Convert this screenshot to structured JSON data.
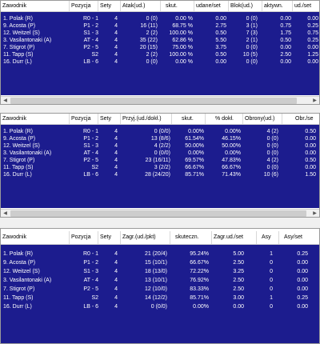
{
  "players": [
    "1. Polak (R)",
    "9. Acosta (P)",
    "12. Weitzel (S)",
    "3. Vasilantonaki (A)",
    "7. Stigrot (P)",
    "11. Tapp (S)",
    "16. Durr (L)"
  ],
  "positions": [
    "R0 - 1",
    "P1 - 2",
    "S1 - 3",
    "AT - 4",
    "P2 - 5",
    "S2",
    "LB - 6"
  ],
  "sets": [
    "4",
    "4",
    "4",
    "4",
    "4",
    "4",
    "4"
  ],
  "table1": {
    "headers": [
      "Zawodnik",
      "Pozycja",
      "Sety",
      "Atak(ud.)",
      "skut.",
      "udane/set",
      "Blok(ud.)",
      "aktywn.",
      "ud./set"
    ],
    "rows": [
      [
        "0 (0)",
        "0.00 %",
        "0.00",
        "0 (0)",
        "0.00",
        "0.00"
      ],
      [
        "16 (11)",
        "68.75 %",
        "2.75",
        "3 (1)",
        "0.75",
        "0.25"
      ],
      [
        "2 (2)",
        "100.00 %",
        "0.50",
        "7 (3)",
        "1.75",
        "0.75"
      ],
      [
        "35 (22)",
        "62.86 %",
        "5.50",
        "2 (1)",
        "0.50",
        "0.25"
      ],
      [
        "20 (15)",
        "75.00 %",
        "3.75",
        "0 (0)",
        "0.00",
        "0.00"
      ],
      [
        "2 (2)",
        "100.00 %",
        "0.50",
        "10 (5)",
        "2.50",
        "1.25"
      ],
      [
        "0 (0)",
        "0.00 %",
        "0.00",
        "0 (0)",
        "0.00",
        "0.00"
      ]
    ]
  },
  "table2": {
    "headers": [
      "Zawodnik",
      "Pozycja",
      "Sety",
      "Przyj.(ud./dokł.)",
      "skut.",
      "% dokł.",
      "Obrony(ud.)",
      "Obr./se"
    ],
    "rows": [
      [
        "0 (0/0)",
        "0.00%",
        "0.00%",
        "4 (2)",
        "0.50"
      ],
      [
        "13 (8/6)",
        "61.54%",
        "46.15%",
        "0 (0)",
        "0.00"
      ],
      [
        "4 (2/2)",
        "50.00%",
        "50.00%",
        "0 (0)",
        "0.00"
      ],
      [
        "0 (0/0)",
        "0.00%",
        "0.00%",
        "0 (0)",
        "0.00"
      ],
      [
        "23 (16/11)",
        "69.57%",
        "47.83%",
        "4 (2)",
        "0.50"
      ],
      [
        "3 (2/2)",
        "66.67%",
        "66.67%",
        "0 (0)",
        "0.00"
      ],
      [
        "28 (24/20)",
        "85.71%",
        "71.43%",
        "10 (6)",
        "1.50"
      ]
    ]
  },
  "table3": {
    "headers": [
      "Zawodnik",
      "Pozycja",
      "Sety",
      "Zagr.(ud./pkt)",
      "skuteczn.",
      "Zagr.ud./set",
      "Asy",
      "Asy/set"
    ],
    "rows": [
      [
        "21 (20/4)",
        "95.24%",
        "5.00",
        "1",
        "0.25"
      ],
      [
        "15 (10/1)",
        "66.67%",
        "2.50",
        "0",
        "0.00"
      ],
      [
        "18 (13/0)",
        "72.22%",
        "3.25",
        "0",
        "0.00"
      ],
      [
        "13 (10/1)",
        "76.92%",
        "2.50",
        "0",
        "0.00"
      ],
      [
        "12 (10/0)",
        "83.33%",
        "2.50",
        "0",
        "0.00"
      ],
      [
        "14 (12/2)",
        "85.71%",
        "3.00",
        "1",
        "0.25"
      ],
      [
        "0 (0/0)",
        "0.00%",
        "0.00",
        "0",
        "0.00"
      ]
    ]
  },
  "colors": {
    "rowBg": "#1c1c8e",
    "headerBg": "#ffffff",
    "text": "#ffffff"
  },
  "icons": {
    "left": "scroll-left-arrow-icon",
    "right": "scroll-right-arrow-icon"
  }
}
